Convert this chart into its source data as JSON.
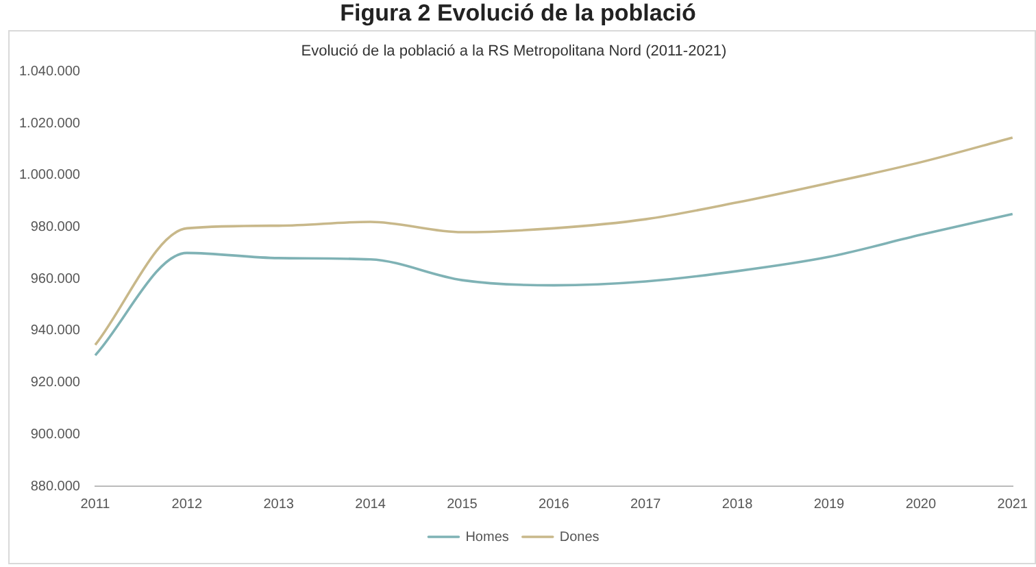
{
  "chart_data": {
    "type": "line",
    "title": "Figura 2 Evolució de la població",
    "subtitle": "Evolució de la població a la RS Metropolitana Nord (2011-2021)",
    "categories": [
      "2011",
      "2012",
      "2013",
      "2014",
      "2015",
      "2016",
      "2017",
      "2018",
      "2019",
      "2020",
      "2021"
    ],
    "series": [
      {
        "name": "Homes",
        "color": "#7fb2b5",
        "values": [
          930500,
          970000,
          968000,
          967500,
          959500,
          957500,
          959000,
          963000,
          968500,
          977000,
          985000
        ]
      },
      {
        "name": "Dones",
        "color": "#c8b88a",
        "values": [
          934500,
          979500,
          980500,
          982000,
          978000,
          979500,
          983000,
          989500,
          997000,
          1005000,
          1014500
        ]
      }
    ],
    "ylim": [
      880000,
      1040000
    ],
    "yticks": [
      {
        "value": 880000,
        "label": "880.000"
      },
      {
        "value": 900000,
        "label": "900.000"
      },
      {
        "value": 920000,
        "label": "920.000"
      },
      {
        "value": 940000,
        "label": "940.000"
      },
      {
        "value": 960000,
        "label": "960.000"
      },
      {
        "value": 980000,
        "label": "980.000"
      },
      {
        "value": 1000000,
        "label": "1.000.000"
      },
      {
        "value": 1020000,
        "label": "1.020.000"
      },
      {
        "value": 1040000,
        "label": "1.040.000"
      }
    ],
    "grid": false,
    "legend": "bottom",
    "marker": "none",
    "line_style": "solid"
  }
}
